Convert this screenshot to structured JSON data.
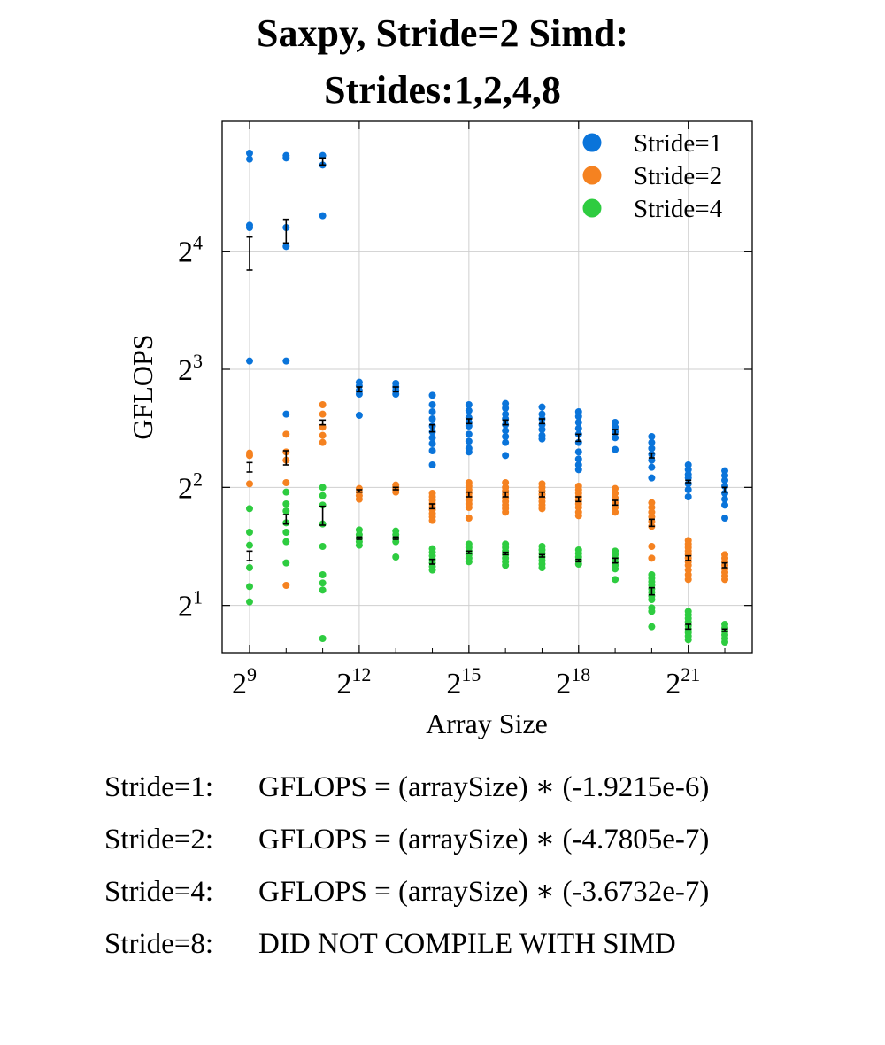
{
  "chart_data": {
    "type": "scatter",
    "title_line1": "Saxpy, Stride=2 Simd:",
    "title_line2": "Strides:1,2,4,8",
    "xlabel": "Array Size",
    "ylabel": "GFLOPS",
    "xscale": "log2",
    "yscale": "log2",
    "xlim_log2": [
      8.25,
      22.75
    ],
    "ylim_log2": [
      0.6,
      5.1
    ],
    "xticks": [
      {
        "base": "2",
        "exp": "9",
        "log2": 9
      },
      {
        "base": "2",
        "exp": "12",
        "log2": 12
      },
      {
        "base": "2",
        "exp": "15",
        "log2": 15
      },
      {
        "base": "2",
        "exp": "18",
        "log2": 18
      },
      {
        "base": "2",
        "exp": "21",
        "log2": 21
      }
    ],
    "yticks": [
      {
        "base": "2",
        "exp": "1",
        "log2": 1
      },
      {
        "base": "2",
        "exp": "2",
        "log2": 2
      },
      {
        "base": "2",
        "exp": "3",
        "log2": 3
      },
      {
        "base": "2",
        "exp": "4",
        "log2": 4
      }
    ],
    "grid": true,
    "legend_position": "top-right",
    "series": [
      {
        "name": "Stride=1",
        "color": "#0a74da",
        "points": [
          {
            "x": 9,
            "y": [
              4.83,
              4.78,
              4.22,
              4.2,
              3.07
            ]
          },
          {
            "x": 10,
            "y": [
              4.81,
              4.79,
              4.04,
              4.2,
              3.07,
              2.62
            ]
          },
          {
            "x": 11,
            "y": [
              4.81,
              4.73,
              4.3
            ]
          },
          {
            "x": 12,
            "y": [
              2.89,
              2.86,
              2.82,
              2.79,
              2.61
            ]
          },
          {
            "x": 13,
            "y": [
              2.88,
              2.85,
              2.82,
              2.79
            ]
          },
          {
            "x": 14,
            "y": [
              2.78,
              2.7,
              2.64,
              2.58,
              2.52,
              2.47,
              2.42,
              2.37,
              2.31,
              2.19
            ]
          },
          {
            "x": 15,
            "y": [
              2.7,
              2.65,
              2.59,
              2.55,
              2.52,
              2.45,
              2.39,
              2.33,
              2.3
            ]
          },
          {
            "x": 16,
            "y": [
              2.71,
              2.67,
              2.62,
              2.58,
              2.53,
              2.48,
              2.43,
              2.38,
              2.27
            ]
          },
          {
            "x": 17,
            "y": [
              2.68,
              2.62,
              2.58,
              2.53,
              2.49,
              2.44,
              2.41
            ]
          },
          {
            "x": 18,
            "y": [
              2.64,
              2.6,
              2.55,
              2.5,
              2.45,
              2.38,
              2.3,
              2.24,
              2.19,
              2.15
            ]
          },
          {
            "x": 19,
            "y": [
              2.55,
              2.51,
              2.47,
              2.42,
              2.32
            ]
          },
          {
            "x": 20,
            "y": [
              2.43,
              2.38,
              2.33,
              2.28,
              2.23,
              2.17,
              2.08
            ]
          },
          {
            "x": 21,
            "y": [
              2.19,
              2.15,
              2.11,
              2.08,
              2.03,
              1.98,
              1.92
            ]
          },
          {
            "x": 22,
            "y": [
              2.14,
              2.1,
              2.06,
              2.01,
              1.95,
              1.9,
              1.85,
              1.74
            ]
          }
        ],
        "mean": [
          {
            "x": 9,
            "y": 3.98,
            "err": 0.14
          },
          {
            "x": 10,
            "y": 4.17,
            "err": 0.1
          },
          {
            "x": 11,
            "y": 4.76,
            "err": 0.03
          },
          {
            "x": 12,
            "y": 2.83,
            "err": 0.02
          },
          {
            "x": 13,
            "y": 2.83,
            "err": 0.02
          },
          {
            "x": 14,
            "y": 2.5,
            "err": 0.03
          },
          {
            "x": 15,
            "y": 2.56,
            "err": 0.02
          },
          {
            "x": 16,
            "y": 2.55,
            "err": 0.02
          },
          {
            "x": 17,
            "y": 2.56,
            "err": 0.02
          },
          {
            "x": 18,
            "y": 2.42,
            "err": 0.03
          },
          {
            "x": 19,
            "y": 2.47,
            "err": 0.02
          },
          {
            "x": 20,
            "y": 2.27,
            "err": 0.02
          },
          {
            "x": 21,
            "y": 2.05,
            "err": 0.01
          },
          {
            "x": 22,
            "y": 1.98,
            "err": 0.02
          }
        ]
      },
      {
        "name": "Stride=2",
        "color": "#f58220",
        "points": [
          {
            "x": 9,
            "y": [
              2.29,
              2.27,
              2.03
            ]
          },
          {
            "x": 10,
            "y": [
              2.45,
              2.3,
              2.23,
              2.04,
              1.17
            ]
          },
          {
            "x": 11,
            "y": [
              2.7,
              2.62,
              2.51,
              2.44,
              2.38
            ]
          },
          {
            "x": 12,
            "y": [
              1.99,
              1.96,
              1.93,
              1.9
            ]
          },
          {
            "x": 13,
            "y": [
              2.02,
              2.0,
              1.98,
              1.96
            ]
          },
          {
            "x": 14,
            "y": [
              1.95,
              1.92,
              1.89,
              1.86,
              1.83,
              1.81,
              1.78,
              1.75,
              1.72
            ]
          },
          {
            "x": 15,
            "y": [
              2.04,
              2.01,
              1.98,
              1.95,
              1.92,
              1.89,
              1.86,
              1.83,
              1.74
            ]
          },
          {
            "x": 16,
            "y": [
              2.04,
              2.0,
              1.97,
              1.94,
              1.91,
              1.88,
              1.85,
              1.82,
              1.79
            ]
          },
          {
            "x": 17,
            "y": [
              2.03,
              2.0,
              1.97,
              1.94,
              1.91,
              1.88,
              1.85,
              1.82
            ]
          },
          {
            "x": 18,
            "y": [
              2.01,
              1.98,
              1.95,
              1.92,
              1.89,
              1.86,
              1.83,
              1.79,
              1.76
            ]
          },
          {
            "x": 19,
            "y": [
              1.99,
              1.95,
              1.91,
              1.87,
              1.83,
              1.79
            ]
          },
          {
            "x": 20,
            "y": [
              1.87,
              1.83,
              1.79,
              1.75,
              1.71,
              1.67,
              1.5,
              1.4
            ]
          },
          {
            "x": 21,
            "y": [
              1.55,
              1.52,
              1.49,
              1.46,
              1.43,
              1.4,
              1.37,
              1.34,
              1.3,
              1.26,
              1.22
            ]
          },
          {
            "x": 22,
            "y": [
              1.43,
              1.4,
              1.37,
              1.34,
              1.31,
              1.28,
              1.25,
              1.22
            ]
          }
        ],
        "mean": [
          {
            "x": 9,
            "y": 2.17,
            "err": 0.04
          },
          {
            "x": 10,
            "y": 2.25,
            "err": 0.06
          },
          {
            "x": 11,
            "y": 2.55,
            "err": 0.02
          },
          {
            "x": 12,
            "y": 1.97,
            "err": 0.01
          },
          {
            "x": 13,
            "y": 1.99,
            "err": 0.01
          },
          {
            "x": 14,
            "y": 1.84,
            "err": 0.02
          },
          {
            "x": 15,
            "y": 1.94,
            "err": 0.02
          },
          {
            "x": 16,
            "y": 1.94,
            "err": 0.02
          },
          {
            "x": 17,
            "y": 1.94,
            "err": 0.02
          },
          {
            "x": 18,
            "y": 1.9,
            "err": 0.02
          },
          {
            "x": 19,
            "y": 1.87,
            "err": 0.02
          },
          {
            "x": 20,
            "y": 1.7,
            "err": 0.03
          },
          {
            "x": 21,
            "y": 1.4,
            "err": 0.02
          },
          {
            "x": 22,
            "y": 1.34,
            "err": 0.02
          }
        ]
      },
      {
        "name": "Stride=4",
        "color": "#2ecc40",
        "points": [
          {
            "x": 9,
            "y": [
              1.82,
              1.62,
              1.51,
              1.32,
              1.16,
              1.03
            ]
          },
          {
            "x": 10,
            "y": [
              1.96,
              1.86,
              1.8,
              1.7,
              1.62,
              1.54,
              1.36
            ]
          },
          {
            "x": 11,
            "y": [
              2.0,
              1.93,
              1.85,
              1.69,
              1.5,
              1.26,
              1.19,
              1.13,
              0.72
            ]
          },
          {
            "x": 12,
            "y": [
              1.64,
              1.6,
              1.57,
              1.54,
              1.51
            ]
          },
          {
            "x": 13,
            "y": [
              1.63,
              1.6,
              1.57,
              1.54,
              1.41
            ]
          },
          {
            "x": 14,
            "y": [
              1.48,
              1.45,
              1.42,
              1.39,
              1.36,
              1.33,
              1.3
            ]
          },
          {
            "x": 15,
            "y": [
              1.52,
              1.49,
              1.46,
              1.43,
              1.4,
              1.37
            ]
          },
          {
            "x": 16,
            "y": [
              1.52,
              1.49,
              1.46,
              1.43,
              1.4,
              1.37,
              1.34
            ]
          },
          {
            "x": 17,
            "y": [
              1.5,
              1.47,
              1.44,
              1.41,
              1.38,
              1.35,
              1.32
            ]
          },
          {
            "x": 18,
            "y": [
              1.47,
              1.44,
              1.41,
              1.38,
              1.35
            ]
          },
          {
            "x": 19,
            "y": [
              1.46,
              1.43,
              1.4,
              1.37,
              1.34,
              1.31,
              1.22
            ]
          },
          {
            "x": 20,
            "y": [
              1.26,
              1.23,
              1.2,
              1.17,
              1.14,
              1.11,
              1.08,
              1.05,
              0.98,
              0.95,
              0.82
            ]
          },
          {
            "x": 21,
            "y": [
              0.95,
              0.92,
              0.89,
              0.86,
              0.83,
              0.8,
              0.77,
              0.74,
              0.71
            ]
          },
          {
            "x": 22,
            "y": [
              0.84,
              0.81,
              0.78,
              0.75,
              0.72,
              0.69
            ]
          }
        ],
        "mean": [
          {
            "x": 9,
            "y": 1.42,
            "err": 0.04
          },
          {
            "x": 10,
            "y": 1.73,
            "err": 0.04
          },
          {
            "x": 11,
            "y": 1.76,
            "err": 0.08
          },
          {
            "x": 12,
            "y": 1.57,
            "err": 0.01
          },
          {
            "x": 13,
            "y": 1.57,
            "err": 0.01
          },
          {
            "x": 14,
            "y": 1.37,
            "err": 0.02
          },
          {
            "x": 15,
            "y": 1.45,
            "err": 0.01
          },
          {
            "x": 16,
            "y": 1.44,
            "err": 0.01
          },
          {
            "x": 17,
            "y": 1.42,
            "err": 0.01
          },
          {
            "x": 18,
            "y": 1.38,
            "err": 0.01
          },
          {
            "x": 19,
            "y": 1.38,
            "err": 0.02
          },
          {
            "x": 20,
            "y": 1.12,
            "err": 0.03
          },
          {
            "x": 21,
            "y": 0.82,
            "err": 0.02
          },
          {
            "x": 22,
            "y": 0.79,
            "err": 0.01
          }
        ]
      }
    ],
    "fits": [
      {
        "label": "Stride=1:",
        "text": "GFLOPS = (arraySize) ∗ (-1.9215e-6)"
      },
      {
        "label": "Stride=2:",
        "text": "GFLOPS = (arraySize) ∗ (-4.7805e-7)"
      },
      {
        "label": "Stride=4:",
        "text": "GFLOPS = (arraySize) ∗ (-3.6732e-7)"
      },
      {
        "label": "Stride=8:",
        "text": "DID NOT COMPILE WITH SIMD"
      }
    ]
  }
}
